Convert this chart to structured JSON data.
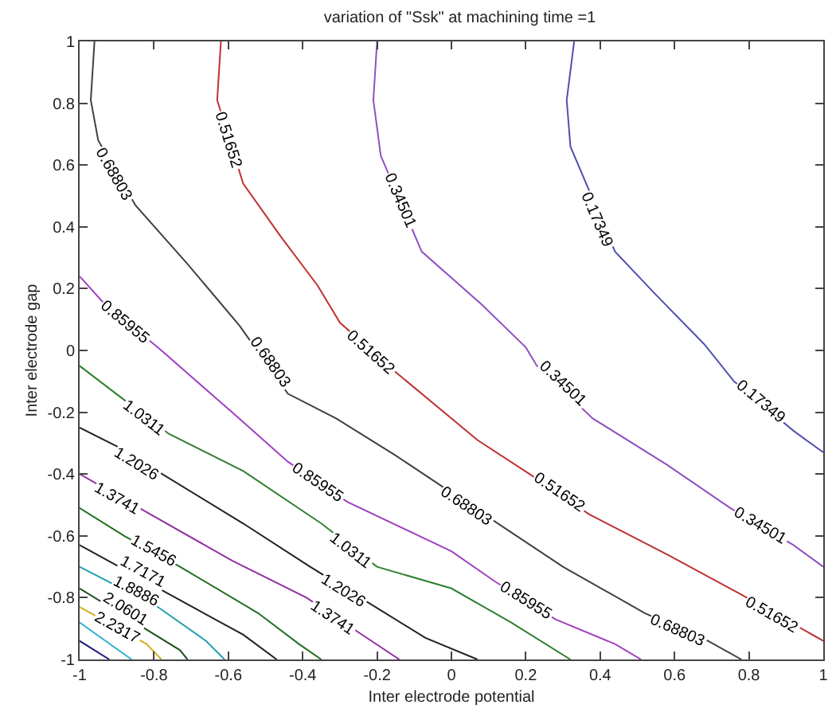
{
  "chart_data": {
    "type": "line",
    "title": "variation of \"Ssk\" at machining time =1",
    "xlabel": "Inter electrode potential",
    "ylabel": "Inter electrode gap",
    "xlim": [
      -1,
      1
    ],
    "ylim": [
      -1,
      1
    ],
    "xticks": [
      -1,
      -0.8,
      -0.6,
      -0.4,
      -0.2,
      0,
      0.2,
      0.4,
      0.6,
      0.8,
      1
    ],
    "yticks": [
      -1,
      -0.8,
      -0.6,
      -0.4,
      -0.2,
      0,
      0.2,
      0.4,
      0.6,
      0.8,
      1
    ],
    "grid": false,
    "marker": "none",
    "line_style": "solid",
    "series": [
      {
        "color": "#5050b0",
        "x": [
          0.33,
          0.31,
          0.32,
          0.44,
          0.55,
          0.68,
          0.76,
          0.92,
          1
        ],
        "values": [
          1,
          0.81,
          0.66,
          0.32,
          0.18,
          0.02,
          -0.1,
          -0.26,
          -0.33
        ]
      },
      {
        "color": "#9050c0",
        "x": [
          -0.2,
          -0.21,
          -0.19,
          -0.08,
          0.08,
          0.2,
          0.23,
          0.38,
          0.58,
          0.75,
          0.92,
          1
        ],
        "values": [
          1,
          0.81,
          0.63,
          0.32,
          0.15,
          0.01,
          -0.05,
          -0.22,
          -0.37,
          -0.51,
          -0.63,
          -0.7
        ]
      },
      {
        "color": "#c03030",
        "x": [
          -0.62,
          -0.63,
          -0.56,
          -0.46,
          -0.36,
          -0.3,
          -0.15,
          0.07,
          0.21,
          0.37,
          0.58,
          0.78,
          1
        ],
        "values": [
          1,
          0.81,
          0.54,
          0.37,
          0.21,
          0.09,
          -0.07,
          -0.29,
          -0.4,
          -0.53,
          -0.66,
          -0.79,
          -0.94
        ]
      },
      {
        "color": "#404040",
        "x": [
          -0.96,
          -0.97,
          -0.95,
          -0.85,
          -0.71,
          -0.57,
          -0.44,
          -0.31,
          -0.15,
          0.3,
          0.52,
          0.69,
          0.78
        ],
        "values": [
          1,
          0.81,
          0.68,
          0.47,
          0.28,
          0.08,
          -0.14,
          -0.22,
          -0.34,
          -0.7,
          -0.85,
          -0.94,
          -1
        ]
      },
      {
        "color": "#a040c0",
        "x": [
          -1,
          -0.94,
          -0.78,
          -0.59,
          -0.44,
          -0.28,
          0,
          0.12,
          0.28,
          0.44,
          0.51
        ],
        "values": [
          0.24,
          0.16,
          0,
          -0.2,
          -0.36,
          -0.49,
          -0.65,
          -0.75,
          -0.87,
          -0.95,
          -1
        ]
      },
      {
        "color": "#308030",
        "x": [
          -1,
          -0.88,
          -0.76,
          -0.56,
          -0.35,
          -0.2,
          0,
          0.16,
          0.32
        ],
        "values": [
          -0.05,
          -0.16,
          -0.27,
          -0.39,
          -0.56,
          -0.7,
          -0.77,
          -0.88,
          -1
        ]
      },
      {
        "color": "#202020",
        "x": [
          -1,
          -0.9,
          -0.56,
          -0.38,
          -0.07,
          0.07
        ],
        "values": [
          -0.25,
          -0.31,
          -0.56,
          -0.7,
          -0.93,
          -1
        ]
      },
      {
        "color": "#9030a0",
        "x": [
          -1,
          -0.81,
          -0.59,
          -0.39,
          -0.24,
          -0.14
        ],
        "values": [
          -0.4,
          -0.53,
          -0.68,
          -0.8,
          -0.92,
          -1
        ]
      },
      {
        "color": "#207020",
        "x": [
          -1,
          -0.88,
          -0.73,
          -0.52,
          -0.41,
          -0.35
        ],
        "values": [
          -0.51,
          -0.6,
          -0.7,
          -0.85,
          -0.95,
          -1
        ]
      },
      {
        "color": "#202020",
        "x": [
          -1,
          -0.56,
          -0.47
        ],
        "values": [
          -0.63,
          -0.92,
          -1
        ]
      },
      {
        "color": "#20a0b0",
        "x": [
          -1,
          -0.79,
          -0.66,
          -0.61
        ],
        "values": [
          -0.7,
          -0.83,
          -0.94,
          -1
        ]
      },
      {
        "color": "#205020",
        "x": [
          -1,
          -0.73,
          -0.71
        ],
        "values": [
          -0.77,
          -0.97,
          -1
        ]
      },
      {
        "color": "#d0b020",
        "x": [
          -1,
          -0.82,
          -0.78
        ],
        "values": [
          -0.83,
          -0.95,
          -1
        ]
      },
      {
        "color": "#30b0d0",
        "x": [
          -1,
          -0.86
        ],
        "values": [
          -0.88,
          -1
        ]
      },
      {
        "color": "#202080",
        "x": [
          -1,
          -0.92
        ],
        "values": [
          -0.94,
          -1
        ]
      }
    ],
    "annotations": [
      {
        "text": "0.68803",
        "x": -0.91,
        "y": 0.57
      },
      {
        "text": "0.51652",
        "x": -0.6,
        "y": 0.68
      },
      {
        "text": "0.34501",
        "x": -0.14,
        "y": 0.48
      },
      {
        "text": "0.17349",
        "x": 0.39,
        "y": 0.42
      },
      {
        "text": "0.85955",
        "x": -0.88,
        "y": 0.09
      },
      {
        "text": "0.68803",
        "x": -0.49,
        "y": -0.04
      },
      {
        "text": "0.51652",
        "x": -0.22,
        "y": -0.01
      },
      {
        "text": "0.34501",
        "x": 0.3,
        "y": -0.11
      },
      {
        "text": "0.17349",
        "x": 0.83,
        "y": -0.17
      },
      {
        "text": "0.85955",
        "x": -0.36,
        "y": -0.43
      },
      {
        "text": "1.0311",
        "x": -0.83,
        "y": -0.22
      },
      {
        "text": "1.2026",
        "x": -0.85,
        "y": -0.37
      },
      {
        "text": "1.3741",
        "x": -0.9,
        "y": -0.48
      },
      {
        "text": "1.5456",
        "x": -0.8,
        "y": -0.65
      },
      {
        "text": "1.7171",
        "x": -0.83,
        "y": -0.72
      },
      {
        "text": "1.8886",
        "x": -0.85,
        "y": -0.78
      },
      {
        "text": "2.0601",
        "x": -0.88,
        "y": -0.84
      },
      {
        "text": "2.2317",
        "x": -0.9,
        "y": -0.9
      },
      {
        "text": "0.68803",
        "x": 0.04,
        "y": -0.51
      },
      {
        "text": "0.51652",
        "x": 0.29,
        "y": -0.46
      },
      {
        "text": "0.34501",
        "x": 0.83,
        "y": -0.57
      },
      {
        "text": "1.0311",
        "x": -0.27,
        "y": -0.65
      },
      {
        "text": "1.2026",
        "x": -0.29,
        "y": -0.78
      },
      {
        "text": "1.3741",
        "x": -0.32,
        "y": -0.87
      },
      {
        "text": "0.85955",
        "x": 0.2,
        "y": -0.81
      },
      {
        "text": "0.68803",
        "x": 0.61,
        "y": -0.91
      },
      {
        "text": "0.51652",
        "x": 0.86,
        "y": -0.86
      }
    ]
  }
}
